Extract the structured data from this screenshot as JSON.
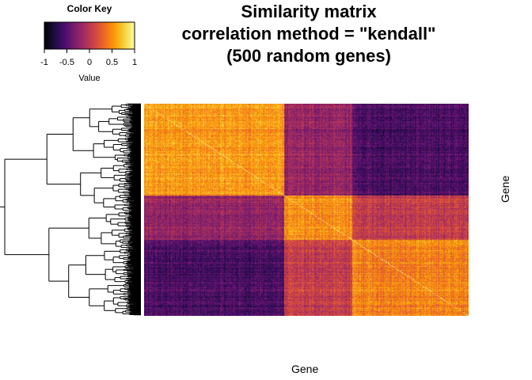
{
  "chart_data": {
    "type": "heatmap",
    "title_lines": [
      "Similarity matrix",
      "correlation method = \"kendall\"",
      "(500 random genes)"
    ],
    "xlabel": "Gene",
    "ylabel": "Gene",
    "n_genes": 500,
    "value_range": [
      -1,
      1
    ],
    "diagonal_value": 1,
    "row_dendrogram": true,
    "color_key": {
      "title": "Color Key",
      "xlabel": "Value",
      "ticks": [
        "-1",
        "-0.5",
        "0",
        "0.5",
        "1"
      ],
      "tick_values": [
        -1,
        -0.5,
        0,
        0.5,
        1
      ],
      "palette": [
        "#000004",
        "#1b0c41",
        "#4a0c6b",
        "#781c6d",
        "#a52c60",
        "#cf4446",
        "#ed6925",
        "#fb9b06",
        "#f7d13d",
        "#fcffa4"
      ]
    },
    "block_breaks": [
      0,
      0.43,
      0.64,
      1.0
    ],
    "block_correlations": [
      [
        0.55,
        -0.2,
        -0.55
      ],
      [
        -0.2,
        0.5,
        0.05
      ],
      [
        -0.55,
        0.05,
        0.45
      ]
    ]
  }
}
